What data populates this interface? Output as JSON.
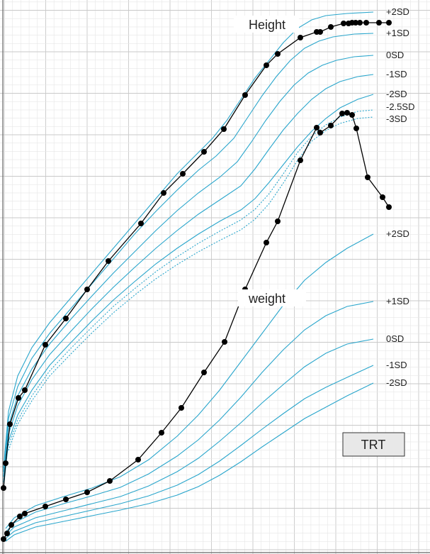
{
  "chart_data": {
    "type": "line",
    "title": "",
    "xlabel": "",
    "ylabel": "",
    "grid": true,
    "colors": {
      "reference": "#2aa6cc",
      "patient": "#000000",
      "grid_minor": "#e6e6e6",
      "grid_major": "#c9c9c9",
      "box_fill": "#e8e8e8",
      "box_border": "#333333"
    },
    "labels": {
      "height": "Height",
      "weight": "weight",
      "box": "TRT"
    },
    "height_reference": [
      {
        "name": "+2SD",
        "style": "solid",
        "points": [
          [
            5,
            660
          ],
          [
            12,
            580
          ],
          [
            25,
            530
          ],
          [
            45,
            490
          ],
          [
            70,
            455
          ],
          [
            100,
            420
          ],
          [
            130,
            385
          ],
          [
            160,
            350
          ],
          [
            190,
            315
          ],
          [
            220,
            280
          ],
          [
            250,
            245
          ],
          [
            280,
            215
          ],
          [
            300,
            195
          ],
          [
            320,
            170
          ],
          [
            340,
            140
          ],
          [
            360,
            110
          ],
          [
            380,
            85
          ],
          [
            400,
            60
          ],
          [
            420,
            40
          ],
          [
            440,
            28
          ],
          [
            460,
            22
          ],
          [
            490,
            19
          ],
          [
            527,
            17
          ]
        ]
      },
      {
        "name": "+1SD",
        "style": "solid",
        "points": [
          [
            5,
            665
          ],
          [
            12,
            590
          ],
          [
            25,
            545
          ],
          [
            45,
            505
          ],
          [
            70,
            470
          ],
          [
            100,
            435
          ],
          [
            130,
            400
          ],
          [
            160,
            365
          ],
          [
            190,
            330
          ],
          [
            220,
            298
          ],
          [
            250,
            268
          ],
          [
            280,
            240
          ],
          [
            305,
            220
          ],
          [
            330,
            195
          ],
          [
            350,
            165
          ],
          [
            370,
            135
          ],
          [
            390,
            108
          ],
          [
            410,
            85
          ],
          [
            430,
            68
          ],
          [
            450,
            58
          ],
          [
            470,
            52
          ],
          [
            500,
            48
          ],
          [
            527,
            47
          ]
        ]
      },
      {
        "name": "0SD",
        "style": "solid",
        "points": [
          [
            5,
            672
          ],
          [
            12,
            600
          ],
          [
            25,
            558
          ],
          [
            45,
            520
          ],
          [
            70,
            485
          ],
          [
            100,
            450
          ],
          [
            130,
            417
          ],
          [
            160,
            385
          ],
          [
            190,
            355
          ],
          [
            220,
            325
          ],
          [
            250,
            297
          ],
          [
            280,
            272
          ],
          [
            310,
            250
          ],
          [
            335,
            228
          ],
          [
            355,
            200
          ],
          [
            375,
            170
          ],
          [
            395,
            143
          ],
          [
            415,
            120
          ],
          [
            435,
            103
          ],
          [
            455,
            92
          ],
          [
            475,
            85
          ],
          [
            500,
            80
          ],
          [
            527,
            78
          ]
        ]
      },
      {
        "name": "-1SD",
        "style": "solid",
        "points": [
          [
            5,
            680
          ],
          [
            12,
            612
          ],
          [
            25,
            572
          ],
          [
            45,
            535
          ],
          [
            70,
            500
          ],
          [
            100,
            467
          ],
          [
            130,
            435
          ],
          [
            160,
            405
          ],
          [
            190,
            377
          ],
          [
            220,
            350
          ],
          [
            250,
            325
          ],
          [
            280,
            302
          ],
          [
            310,
            282
          ],
          [
            340,
            262
          ],
          [
            360,
            238
          ],
          [
            380,
            210
          ],
          [
            400,
            183
          ],
          [
            420,
            160
          ],
          [
            440,
            140
          ],
          [
            460,
            125
          ],
          [
            480,
            115
          ],
          [
            505,
            108
          ],
          [
            527,
            105
          ]
        ]
      },
      {
        "name": "-2SD",
        "style": "solid",
        "points": [
          [
            5,
            688
          ],
          [
            12,
            622
          ],
          [
            25,
            585
          ],
          [
            45,
            550
          ],
          [
            70,
            515
          ],
          [
            100,
            483
          ],
          [
            130,
            452
          ],
          [
            160,
            423
          ],
          [
            190,
            397
          ],
          [
            220,
            372
          ],
          [
            250,
            350
          ],
          [
            280,
            330
          ],
          [
            310,
            312
          ],
          [
            340,
            296
          ],
          [
            360,
            280
          ],
          [
            380,
            257
          ],
          [
            400,
            232
          ],
          [
            420,
            207
          ],
          [
            440,
            185
          ],
          [
            460,
            167
          ],
          [
            480,
            152
          ],
          [
            505,
            140
          ],
          [
            527,
            133
          ]
        ]
      },
      {
        "name": "-2.5SD",
        "style": "dotted",
        "points": [
          [
            12,
            628
          ],
          [
            25,
            592
          ],
          [
            45,
            558
          ],
          [
            70,
            523
          ],
          [
            100,
            491
          ],
          [
            130,
            461
          ],
          [
            160,
            432
          ],
          [
            190,
            407
          ],
          [
            220,
            383
          ],
          [
            250,
            362
          ],
          [
            280,
            343
          ],
          [
            310,
            326
          ],
          [
            340,
            310
          ],
          [
            360,
            295
          ],
          [
            380,
            273
          ],
          [
            400,
            245
          ],
          [
            420,
            215
          ],
          [
            440,
            192
          ],
          [
            460,
            176
          ],
          [
            480,
            165
          ],
          [
            505,
            157
          ],
          [
            527,
            155
          ]
        ]
      },
      {
        "name": "-3SD",
        "style": "dotted",
        "points": [
          [
            12,
            635
          ],
          [
            25,
            598
          ],
          [
            45,
            565
          ],
          [
            70,
            530
          ],
          [
            100,
            499
          ],
          [
            130,
            469
          ],
          [
            160,
            441
          ],
          [
            190,
            416
          ],
          [
            220,
            393
          ],
          [
            250,
            373
          ],
          [
            280,
            355
          ],
          [
            310,
            339
          ],
          [
            340,
            324
          ],
          [
            360,
            309
          ],
          [
            380,
            287
          ],
          [
            400,
            258
          ],
          [
            420,
            226
          ],
          [
            440,
            199
          ],
          [
            460,
            184
          ],
          [
            480,
            174
          ],
          [
            505,
            167
          ],
          [
            527,
            165
          ]
        ]
      }
    ],
    "weight_reference": [
      {
        "name": "+2SD",
        "style": "solid",
        "points": [
          [
            8,
            745
          ],
          [
            20,
            730
          ],
          [
            50,
            713
          ],
          [
            90,
            700
          ],
          [
            130,
            688
          ],
          [
            170,
            672
          ],
          [
            210,
            648
          ],
          [
            250,
            615
          ],
          [
            280,
            585
          ],
          [
            310,
            550
          ],
          [
            340,
            510
          ],
          [
            370,
            470
          ],
          [
            400,
            430
          ],
          [
            430,
            395
          ],
          [
            460,
            370
          ],
          [
            490,
            350
          ],
          [
            527,
            330
          ]
        ]
      },
      {
        "name": "+1SD",
        "style": "solid",
        "points": [
          [
            8,
            750
          ],
          [
            20,
            737
          ],
          [
            50,
            722
          ],
          [
            90,
            710
          ],
          [
            130,
            699
          ],
          [
            170,
            687
          ],
          [
            210,
            668
          ],
          [
            250,
            643
          ],
          [
            280,
            620
          ],
          [
            310,
            592
          ],
          [
            340,
            560
          ],
          [
            370,
            525
          ],
          [
            400,
            493
          ],
          [
            430,
            465
          ],
          [
            460,
            445
          ],
          [
            490,
            432
          ],
          [
            527,
            425
          ]
        ]
      },
      {
        "name": "0SD",
        "style": "solid",
        "points": [
          [
            8,
            755
          ],
          [
            20,
            743
          ],
          [
            50,
            730
          ],
          [
            90,
            720
          ],
          [
            130,
            710
          ],
          [
            170,
            700
          ],
          [
            210,
            685
          ],
          [
            250,
            665
          ],
          [
            280,
            646
          ],
          [
            310,
            622
          ],
          [
            340,
            596
          ],
          [
            370,
            568
          ],
          [
            400,
            542
          ],
          [
            430,
            517
          ],
          [
            460,
            498
          ],
          [
            490,
            485
          ],
          [
            527,
            478
          ]
        ]
      },
      {
        "name": "-1SD",
        "style": "solid",
        "points": [
          [
            8,
            759
          ],
          [
            20,
            749
          ],
          [
            50,
            737
          ],
          [
            90,
            728
          ],
          [
            130,
            719
          ],
          [
            170,
            710
          ],
          [
            210,
            699
          ],
          [
            250,
            684
          ],
          [
            280,
            669
          ],
          [
            310,
            650
          ],
          [
            340,
            628
          ],
          [
            370,
            605
          ],
          [
            400,
            583
          ],
          [
            430,
            562
          ],
          [
            460,
            546
          ],
          [
            490,
            532
          ],
          [
            527,
            515
          ]
        ]
      },
      {
        "name": "-2SD",
        "style": "solid",
        "points": [
          [
            8,
            763
          ],
          [
            20,
            754
          ],
          [
            50,
            743
          ],
          [
            90,
            735
          ],
          [
            130,
            727
          ],
          [
            170,
            719
          ],
          [
            210,
            710
          ],
          [
            250,
            698
          ],
          [
            280,
            686
          ],
          [
            310,
            670
          ],
          [
            340,
            651
          ],
          [
            370,
            630
          ],
          [
            400,
            610
          ],
          [
            430,
            590
          ],
          [
            460,
            574
          ],
          [
            490,
            558
          ],
          [
            527,
            540
          ]
        ]
      }
    ],
    "height_patient": [
      [
        5,
        688
      ],
      [
        8,
        653
      ],
      [
        14,
        598
      ],
      [
        26,
        561
      ],
      [
        35,
        550
      ],
      [
        64,
        486
      ],
      [
        93,
        449
      ],
      [
        123,
        408
      ],
      [
        153,
        368
      ],
      [
        199,
        315
      ],
      [
        231,
        272
      ],
      [
        258,
        245
      ],
      [
        288,
        214
      ],
      [
        316,
        182
      ],
      [
        346,
        134
      ],
      [
        376,
        92
      ],
      [
        392,
        76
      ],
      [
        424,
        53
      ],
      [
        447,
        45
      ],
      [
        452,
        45
      ],
      [
        467,
        38
      ],
      [
        485,
        33
      ],
      [
        492,
        33
      ],
      [
        497,
        32
      ],
      [
        502,
        32
      ],
      [
        508,
        32
      ],
      [
        517,
        32
      ],
      [
        535,
        32
      ],
      [
        549,
        32
      ]
    ],
    "weight_patient": [
      [
        5,
        760
      ],
      [
        10,
        752
      ],
      [
        16,
        740
      ],
      [
        28,
        728
      ],
      [
        35,
        724
      ],
      [
        64,
        714
      ],
      [
        93,
        704
      ],
      [
        123,
        694
      ],
      [
        155,
        678
      ],
      [
        195,
        648
      ],
      [
        228,
        610
      ],
      [
        256,
        575
      ],
      [
        288,
        525
      ],
      [
        317,
        482
      ],
      [
        346,
        408
      ],
      [
        376,
        342
      ],
      [
        392,
        312
      ],
      [
        424,
        226
      ],
      [
        447,
        180
      ],
      [
        452,
        187
      ],
      [
        467,
        177
      ],
      [
        483,
        160
      ],
      [
        490,
        159
      ],
      [
        497,
        162
      ],
      [
        503,
        181
      ],
      [
        519,
        250
      ],
      [
        540,
        278
      ],
      [
        549,
        292
      ]
    ],
    "label_positions_hint": "right-side"
  }
}
